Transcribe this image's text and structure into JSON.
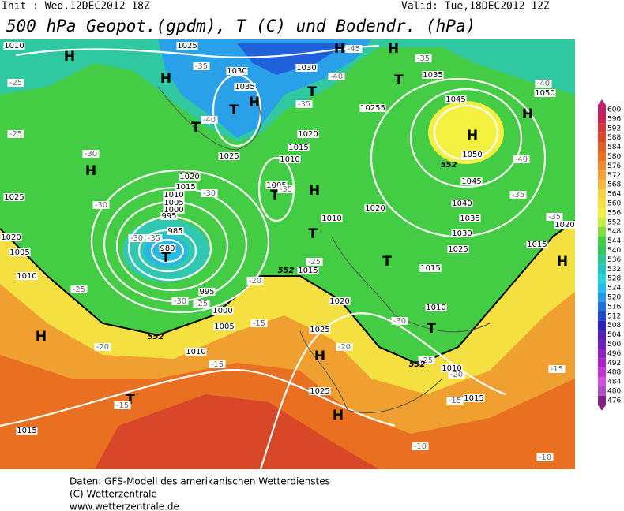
{
  "header": {
    "init": "Init : Wed,12DEC2012 18Z",
    "valid": "Valid: Tue,18DEC2012 12Z",
    "title": "500 hPa Geopot.(gpdm), T (C) und Bodendr. (hPa)"
  },
  "scale": {
    "labels": [
      "600",
      "596",
      "592",
      "588",
      "584",
      "580",
      "576",
      "572",
      "568",
      "564",
      "560",
      "556",
      "552",
      "548",
      "544",
      "540",
      "536",
      "532",
      "528",
      "524",
      "520",
      "516",
      "512",
      "508",
      "504",
      "500",
      "496",
      "492",
      "488",
      "484",
      "480",
      "476"
    ],
    "colors": [
      "#c0206a",
      "#d02050",
      "#d83838",
      "#e04820",
      "#e86020",
      "#f07020",
      "#f48830",
      "#f8a030",
      "#fcb838",
      "#fcd040",
      "#fce040",
      "#f4f040",
      "#c8f040",
      "#80e040",
      "#40d040",
      "#30c858",
      "#28c890",
      "#20c8c0",
      "#20d8e0",
      "#20c0f0",
      "#2098f0",
      "#2070e0",
      "#2048d0",
      "#2820c0",
      "#5020c0",
      "#7020c0",
      "#9020c8",
      "#b020d0",
      "#c830d8",
      "#d050e0",
      "#b050c8",
      "#802080"
    ]
  },
  "map_labels": {
    "highs_lows": [
      "H",
      "H",
      "H",
      "H",
      "H",
      "H",
      "H",
      "H",
      "H",
      "H",
      "H",
      "H",
      "H",
      "T",
      "T",
      "T",
      "T",
      "T",
      "T",
      "T",
      "T",
      "T",
      "T"
    ],
    "isobars": [
      "1025",
      "1030",
      "1035",
      "1030",
      "1035",
      "1045",
      "1050",
      "1020",
      "1015",
      "1010",
      "1005",
      "1025",
      "1020",
      "1015",
      "1010",
      "1005",
      "1000",
      "995",
      "985",
      "980",
      "995",
      "1000",
      "1005",
      "1010",
      "1015",
      "1025",
      "1020",
      "1005",
      "1010",
      "1020",
      "1040",
      "1035",
      "1030",
      "1025",
      "1015",
      "1010",
      "1015",
      "1010",
      "1020",
      "1025",
      "1025",
      "1015",
      "1010",
      "1045",
      "1015",
      "1020",
      "1010",
      "10255",
      "1050"
    ],
    "temperatures": [
      "-45",
      "-35",
      "-40",
      "-35",
      "-40",
      "-35",
      "-40",
      "-25",
      "-25",
      "-30",
      "-30",
      "-30",
      "-35",
      "-35",
      "-30",
      "-30",
      "-25",
      "-20",
      "-25",
      "-15",
      "-20",
      "-15",
      "-15",
      "-20",
      "-30",
      "-25",
      "-20",
      "-15",
      "-15",
      "-10",
      "-10",
      "-35",
      "-40",
      "-35",
      "-25"
    ],
    "contour_552": [
      "552",
      "552",
      "552",
      "552"
    ]
  },
  "footer": {
    "line1": "Daten: GFS-Modell des amerikanischen Wetterdienstes",
    "line2": "(C) Wetterzentrale",
    "line3": "www.wetterzentrale.de"
  }
}
